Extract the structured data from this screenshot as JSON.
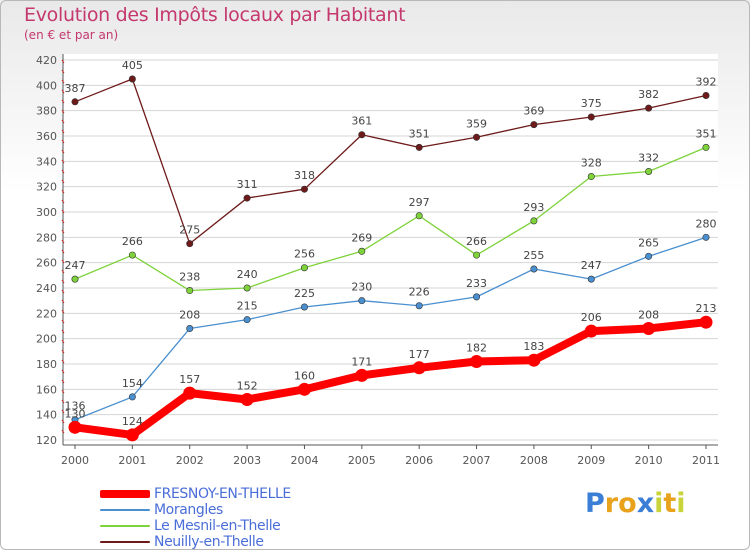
{
  "title": "Evolution des Impôts locaux par Habitant",
  "subtitle": "(en € et par an)",
  "logo": {
    "text": "Proxiti",
    "letters": [
      {
        "char": "P",
        "color": "#3a7fd5"
      },
      {
        "char": "r",
        "color": "#e8a21c"
      },
      {
        "char": "o",
        "color": "#e8a21c"
      },
      {
        "char": "x",
        "color": "#3a7fd5"
      },
      {
        "char": "i",
        "color": "#c8d43a"
      },
      {
        "char": "t",
        "color": "#e8a21c"
      },
      {
        "char": "i",
        "color": "#c8d43a"
      }
    ]
  },
  "chart_data": {
    "type": "line",
    "title": "Evolution des Impôts locaux par Habitant",
    "subtitle": "(en € et par an)",
    "xlabel": "",
    "ylabel": "",
    "x": [
      "2000",
      "2001",
      "2002",
      "2003",
      "2004",
      "2005",
      "2006",
      "2007",
      "2008",
      "2009",
      "2010",
      "2011"
    ],
    "ylim": [
      120,
      420
    ],
    "yticks": [
      120,
      140,
      160,
      180,
      200,
      220,
      240,
      260,
      280,
      300,
      320,
      340,
      360,
      380,
      400,
      420
    ],
    "grid": "horizontal",
    "legend_position": "bottom",
    "series": [
      {
        "name": "FRESNOY-EN-THELLE",
        "color": "#ff0000",
        "emphasis": true,
        "values": [
          130,
          124,
          157,
          152,
          160,
          171,
          177,
          182,
          183,
          206,
          208,
          213
        ]
      },
      {
        "name": "Morangles",
        "color": "#4a8fd0",
        "emphasis": false,
        "values": [
          136,
          154,
          208,
          215,
          225,
          230,
          226,
          233,
          255,
          247,
          265,
          280
        ]
      },
      {
        "name": "Le Mesnil-en-Thelle",
        "color": "#7ed23a",
        "emphasis": false,
        "values": [
          247,
          266,
          238,
          240,
          256,
          269,
          297,
          266,
          293,
          328,
          332,
          351
        ]
      },
      {
        "name": "Neuilly-en-Thelle",
        "color": "#6e1a1a",
        "emphasis": false,
        "values": [
          387,
          405,
          275,
          311,
          318,
          361,
          351,
          359,
          369,
          375,
          382,
          392
        ]
      }
    ]
  }
}
